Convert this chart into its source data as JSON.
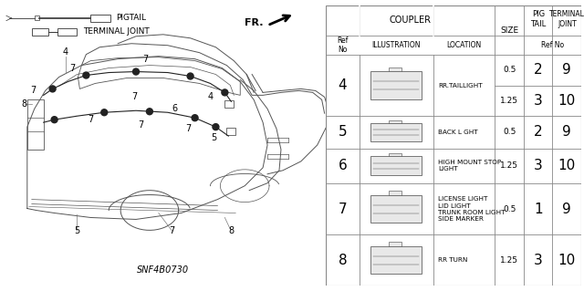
{
  "bg_color": "#ffffff",
  "part_number": "SNF4B0730",
  "table": {
    "rows": [
      {
        "ref": "4",
        "location": "RR.TAILLIGHT",
        "sub_rows": [
          {
            "size": "0.5",
            "pig": "2",
            "terminal": "9"
          },
          {
            "size": "1.25",
            "pig": "3",
            "terminal": "10"
          }
        ]
      },
      {
        "ref": "5",
        "location": "BACK L GHT",
        "sub_rows": [
          {
            "size": "0.5",
            "pig": "2",
            "terminal": "9"
          }
        ]
      },
      {
        "ref": "6",
        "location": "HIGH MOUNT STOP\nLIGHT",
        "sub_rows": [
          {
            "size": "1.25",
            "pig": "3",
            "terminal": "10"
          }
        ]
      },
      {
        "ref": "7",
        "location": "LICENSE LIGHT\nLID LIGHT\nTRUNK ROOM LIGHT\nSIDE MARKER",
        "sub_rows": [
          {
            "size": "0.5",
            "pig": "1",
            "terminal": "9"
          }
        ]
      },
      {
        "ref": "8",
        "location": "RR TURN",
        "sub_rows": [
          {
            "size": "1.25",
            "pig": "3",
            "terminal": "10"
          }
        ]
      }
    ]
  }
}
